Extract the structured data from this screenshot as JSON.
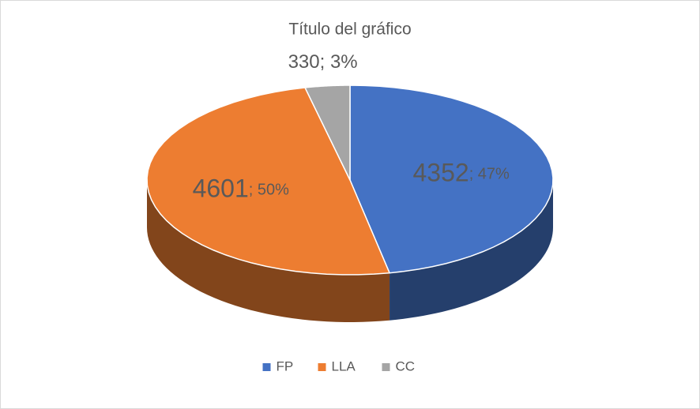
{
  "chart_data": {
    "type": "pie3d",
    "title": "Título del gráfico",
    "categories": [
      "FP",
      "LLA",
      "CC"
    ],
    "values": [
      4352,
      4601,
      330
    ],
    "percents": [
      47,
      50,
      3
    ],
    "percent_labels": [
      "; 47%",
      "; 50%",
      "; 3%"
    ],
    "colors": [
      "#4472c4",
      "#ed7d31",
      "#a5a5a5"
    ],
    "legend": "bottom"
  }
}
